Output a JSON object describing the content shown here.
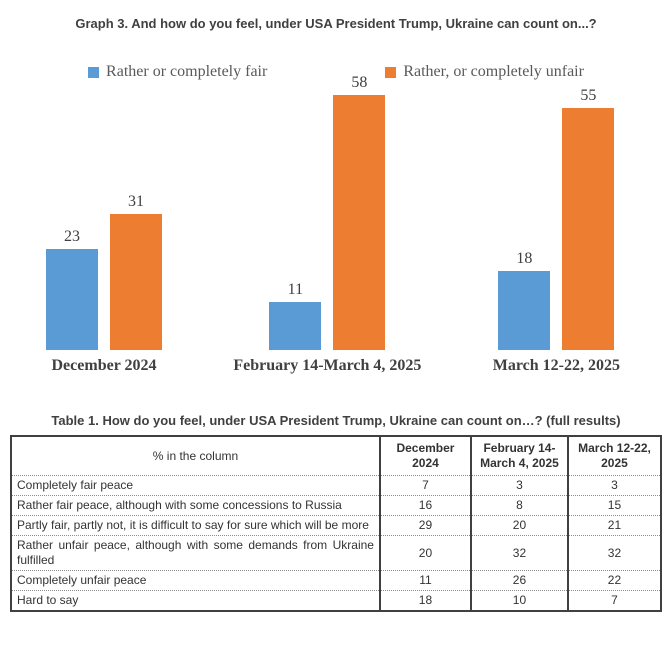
{
  "chart_data": {
    "type": "bar",
    "title": "Graph 3. And how do you feel, under USA President Trump, Ukraine can count on...?",
    "categories": [
      "December 2024",
      "February 14-March 4, 2025",
      "March 12-22, 2025"
    ],
    "series": [
      {
        "name": "Rather or completely fair",
        "color": "#5B9BD5",
        "values": [
          23,
          11,
          18
        ]
      },
      {
        "name": "Rather, or completely unfair",
        "color": "#ED7D31",
        "values": [
          31,
          58,
          55
        ]
      }
    ],
    "ylim": [
      0,
      60
    ],
    "grid": false,
    "axes_visible": false,
    "legend_position": "top",
    "data_labels": true,
    "label_color": "#404040",
    "legend_text_color": "#595959"
  },
  "table": {
    "title": "Table 1. How do you feel, under USA President Trump, Ukraine can count on…? (full results)",
    "columns": [
      "% in the column",
      "December\n2024",
      "February 14-\nMarch 4, 2025",
      "March 12-22,\n2025"
    ],
    "rows": [
      {
        "label": "Completely fair peace",
        "values": [
          7,
          3,
          3
        ]
      },
      {
        "label": "Rather fair peace, although with some concessions to Russia",
        "values": [
          16,
          8,
          15
        ]
      },
      {
        "label": "Partly fair, partly not, it is difficult to say for sure which will be more",
        "values": [
          29,
          20,
          21
        ]
      },
      {
        "label": "Rather unfair peace, although with some demands from Ukraine fulfilled",
        "values": [
          20,
          32,
          32
        ]
      },
      {
        "label": "Completely unfair peace",
        "values": [
          11,
          26,
          22
        ]
      },
      {
        "label": "Hard to say",
        "values": [
          18,
          10,
          7
        ]
      }
    ]
  }
}
